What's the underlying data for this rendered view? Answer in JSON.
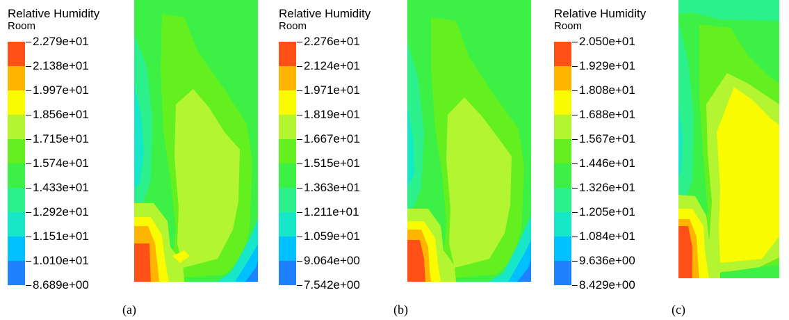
{
  "colors": [
    "#0a20ff",
    "#1e82ff",
    "#00c0ff",
    "#18e6c8",
    "#2cf08c",
    "#3cf046",
    "#64f01e",
    "#b4f532",
    "#fafa00",
    "#ffb400",
    "#ff5018"
  ],
  "panels": [
    {
      "title": "Relative Humidity",
      "subtitle": "Room",
      "caption": "(a)",
      "levels": [
        "2.279e+01",
        "2.138e+01",
        "1.997e+01",
        "1.856e+01",
        "1.715e+01",
        "1.574e+01",
        "1.433e+01",
        "1.292e+01",
        "1.151e+01",
        "1.010e+01",
        "8.689e+00"
      ]
    },
    {
      "title": "Relative Humidity",
      "subtitle": "Room",
      "caption": "(b)",
      "levels": [
        "2.276e+01",
        "2.124e+01",
        "1.971e+01",
        "1.819e+01",
        "1.667e+01",
        "1.515e+01",
        "1.363e+01",
        "1.211e+01",
        "1.059e+01",
        "9.064e+00",
        "7.542e+00"
      ]
    },
    {
      "title": "Relative Humidity",
      "subtitle": "Room",
      "caption": "(c)",
      "levels": [
        "2.050e+01",
        "1.929e+01",
        "1.808e+01",
        "1.688e+01",
        "1.567e+01",
        "1.446e+01",
        "1.326e+01",
        "1.205e+01",
        "1.084e+01",
        "9.636e+00",
        "8.429e+00"
      ]
    }
  ]
}
